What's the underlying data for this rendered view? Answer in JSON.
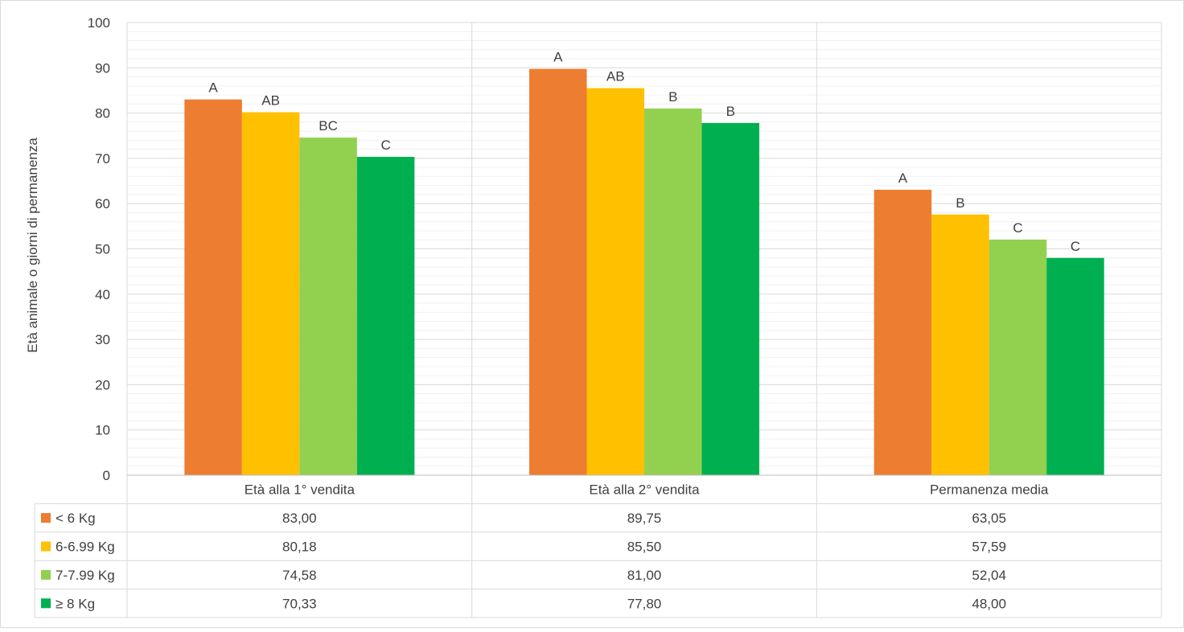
{
  "chart_data": {
    "type": "bar",
    "title": "",
    "xlabel": "",
    "ylabel": "Età animale o giorni di permanenza",
    "ylim": [
      0,
      100
    ],
    "yticks": [
      0,
      10,
      20,
      30,
      40,
      50,
      60,
      70,
      80,
      90,
      100
    ],
    "grid": true,
    "legend": "data-table",
    "categories": [
      "Età alla 1° vendita",
      "Età alla 2° vendita",
      "Permanenza media"
    ],
    "series": [
      {
        "name": "< 6 Kg",
        "color": "#ED7D31",
        "values": [
          83.0,
          89.75,
          63.05
        ],
        "value_labels": [
          "83,00",
          "89,75",
          "63,05"
        ],
        "letters": [
          "A",
          "A",
          "A"
        ]
      },
      {
        "name": "6-6.99 Kg",
        "color": "#FFC000",
        "values": [
          80.18,
          85.5,
          57.59
        ],
        "value_labels": [
          "80,18",
          "85,50",
          "57,59"
        ],
        "letters": [
          "AB",
          "AB",
          "B"
        ]
      },
      {
        "name": "7-7.99 Kg",
        "color": "#92D050",
        "values": [
          74.58,
          81.0,
          52.04
        ],
        "value_labels": [
          "74,58",
          "81,00",
          "52,04"
        ],
        "letters": [
          "BC",
          "B",
          "C"
        ]
      },
      {
        "name": "≥ 8 Kg",
        "color": "#00B050",
        "values": [
          70.33,
          77.8,
          48.0
        ],
        "value_labels": [
          "70,33",
          "77,80",
          "48,00"
        ],
        "letters": [
          "C",
          "B",
          "C"
        ]
      }
    ]
  }
}
